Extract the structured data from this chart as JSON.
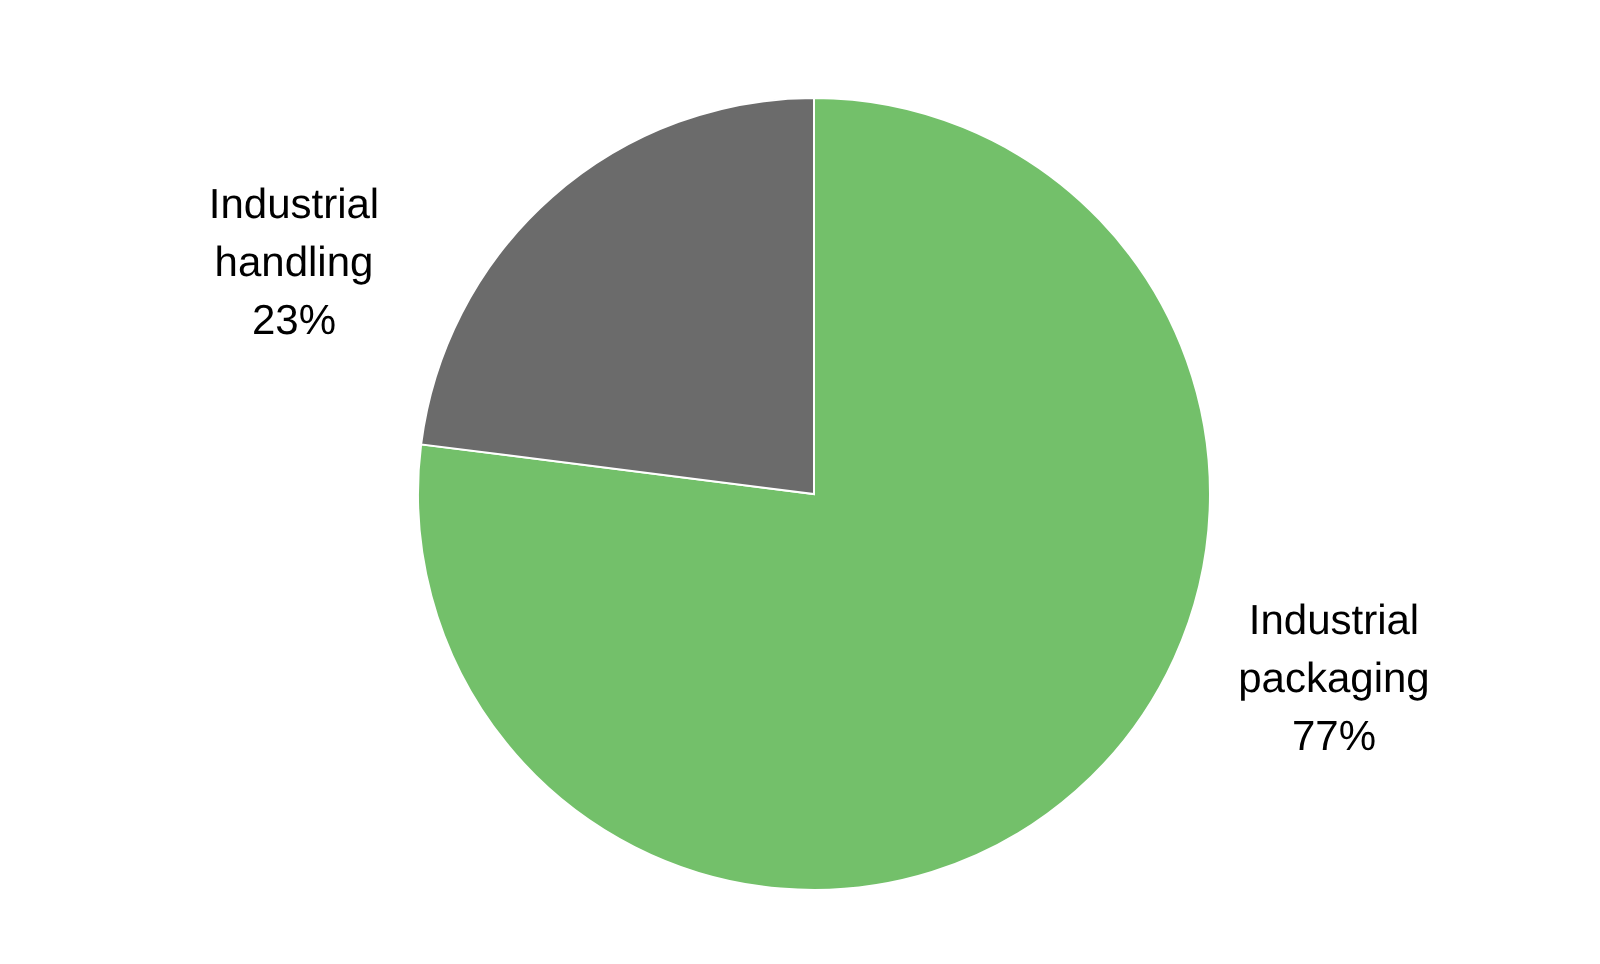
{
  "chart_data": {
    "type": "pie",
    "categories": [
      "Industrial packaging",
      "Industrial handling"
    ],
    "values": [
      77,
      23
    ],
    "value_labels": [
      "77%",
      "23%"
    ],
    "colors": [
      "#73c06a",
      "#6b6b6b"
    ]
  }
}
